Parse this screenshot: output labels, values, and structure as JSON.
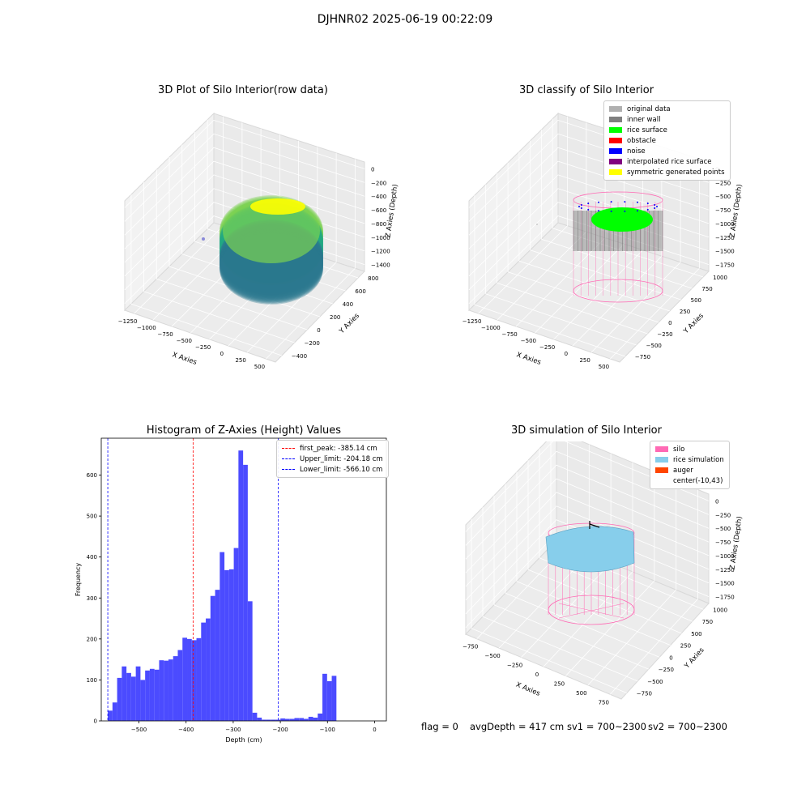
{
  "figure": {
    "suptitle": "DJHNR02 2025-06-19 00:22:09",
    "footer": {
      "flag": "flag = 0",
      "avg_depth": "avgDepth = 417 cm",
      "sv1": "sv1 = 700~2300",
      "sv2": "sv2 = 700~2300"
    }
  },
  "colors": {
    "grey_data": "#b0b0b0",
    "inner_wall": "#7f7f7f",
    "rice_surface": "#00ff00",
    "obstacle": "#ff0000",
    "noise": "#0000ff",
    "interpolated": "#800080",
    "symmetric": "#ffff00",
    "silo": "#ff69b4",
    "rice_sim": "#87ceeb",
    "auger": "#ff4500",
    "hist_bar": "#4b4bff",
    "viridis_top": "#7ad151",
    "viridis_mid": "#22a884",
    "viridis_low": "#2a788e"
  },
  "chart_data": [
    {
      "id": "plot1",
      "type": "scatter3d",
      "title": "3D Plot of Silo Interior(row data)",
      "xlabel": "X Axies",
      "ylabel": "Y Axies",
      "zlabel": "Z Axies (Depth)",
      "x_ticks": [
        "−1250",
        "−1000",
        "−750",
        "−500",
        "−250",
        "0",
        "250",
        "500"
      ],
      "y_ticks": [
        "−400",
        "−200",
        "0",
        "200",
        "400",
        "600",
        "800"
      ],
      "z_ticks": [
        "0",
        "−200",
        "−400",
        "−600",
        "−800",
        "−1000",
        "−1200",
        "−1400"
      ],
      "xlim": [
        -1350,
        550
      ],
      "ylim": [
        -450,
        850
      ],
      "zlim": [
        -1450,
        50
      ],
      "grid": true,
      "colormap": "viridis"
    },
    {
      "id": "plot2",
      "type": "scatter3d",
      "title": "3D classify of Silo Interior",
      "xlabel": "X Axies",
      "ylabel": "Y Axies",
      "zlabel": "Z Axies (Depth)",
      "x_ticks": [
        "−1250",
        "−1000",
        "−750",
        "−500",
        "−250",
        "0",
        "250",
        "500"
      ],
      "y_ticks": [
        "−750",
        "−500",
        "−250",
        "0",
        "250",
        "500",
        "750",
        "1000"
      ],
      "z_ticks": [
        "0",
        "−250",
        "−500",
        "−750",
        "−1000",
        "−1250",
        "−1500",
        "−1750"
      ],
      "grid": true,
      "legend_position": "top-right",
      "legend": [
        {
          "label": "original data",
          "color": "#b0b0b0"
        },
        {
          "label": "inner wall",
          "color": "#7f7f7f"
        },
        {
          "label": "rice surface",
          "color": "#00ff00"
        },
        {
          "label": "obstacle",
          "color": "#ff0000"
        },
        {
          "label": "noise",
          "color": "#0000ff"
        },
        {
          "label": "interpolated rice surface",
          "color": "#800080"
        },
        {
          "label": "symmetric generated points",
          "color": "#ffff00"
        }
      ]
    },
    {
      "id": "plot3",
      "type": "bar",
      "title": "Histogram of Z-Axies (Height) Values",
      "xlabel": "Depth (cm)",
      "ylabel": "Frequency",
      "xlim": [
        -580,
        25
      ],
      "ylim": [
        0,
        690
      ],
      "x_ticks": [
        -500,
        -400,
        -300,
        -200,
        -100,
        0
      ],
      "x_tick_labels": [
        "−500",
        "−400",
        "−300",
        "−200",
        "−100",
        "0"
      ],
      "y_ticks": [
        0,
        100,
        200,
        300,
        400,
        500,
        600
      ],
      "bin_start": -566.1,
      "bin_width": 9.9,
      "values": [
        25,
        45,
        105,
        133,
        117,
        108,
        133,
        100,
        123,
        127,
        125,
        148,
        147,
        150,
        158,
        173,
        203,
        200,
        197,
        202,
        240,
        250,
        305,
        320,
        412,
        368,
        370,
        422,
        660,
        625,
        292,
        20,
        8,
        3,
        3,
        3,
        3,
        6,
        5,
        5,
        7,
        7,
        5,
        10,
        8,
        18,
        115,
        97,
        110
      ],
      "vlines": [
        {
          "name": "first_peak",
          "x": -385.14,
          "color": "#ff0000",
          "label": "first_peak: -385.14 cm"
        },
        {
          "name": "upper_limit",
          "x": -204.18,
          "color": "#0000ff",
          "label": "Upper_limit: -204.18 cm"
        },
        {
          "name": "lower_limit",
          "x": -566.1,
          "color": "#0000ff",
          "label": "Lower_limit: -566.10 cm"
        }
      ],
      "legend_position": "top-right"
    },
    {
      "id": "plot4",
      "type": "scatter3d",
      "title": "3D simulation of Silo Interior",
      "xlabel": "X Axies",
      "ylabel": "Y Axies",
      "zlabel": "Z Axies (Depth)",
      "x_ticks": [
        "−750",
        "−500",
        "−250",
        "0",
        "250",
        "500",
        "750"
      ],
      "y_ticks": [
        "−750",
        "−500",
        "−250",
        "0",
        "250",
        "500",
        "750",
        "1000"
      ],
      "z_ticks": [
        "0",
        "−250",
        "−500",
        "−750",
        "−1000",
        "−1250",
        "−1500",
        "−1750"
      ],
      "grid": true,
      "legend_position": "top-right",
      "legend": [
        {
          "label": "silo",
          "color": "#ff69b4"
        },
        {
          "label": "rice simulation",
          "color": "#87ceeb"
        },
        {
          "label": "auger",
          "color": "#ff4500"
        },
        {
          "label": "center(-10,43)",
          "color": ""
        }
      ]
    }
  ]
}
